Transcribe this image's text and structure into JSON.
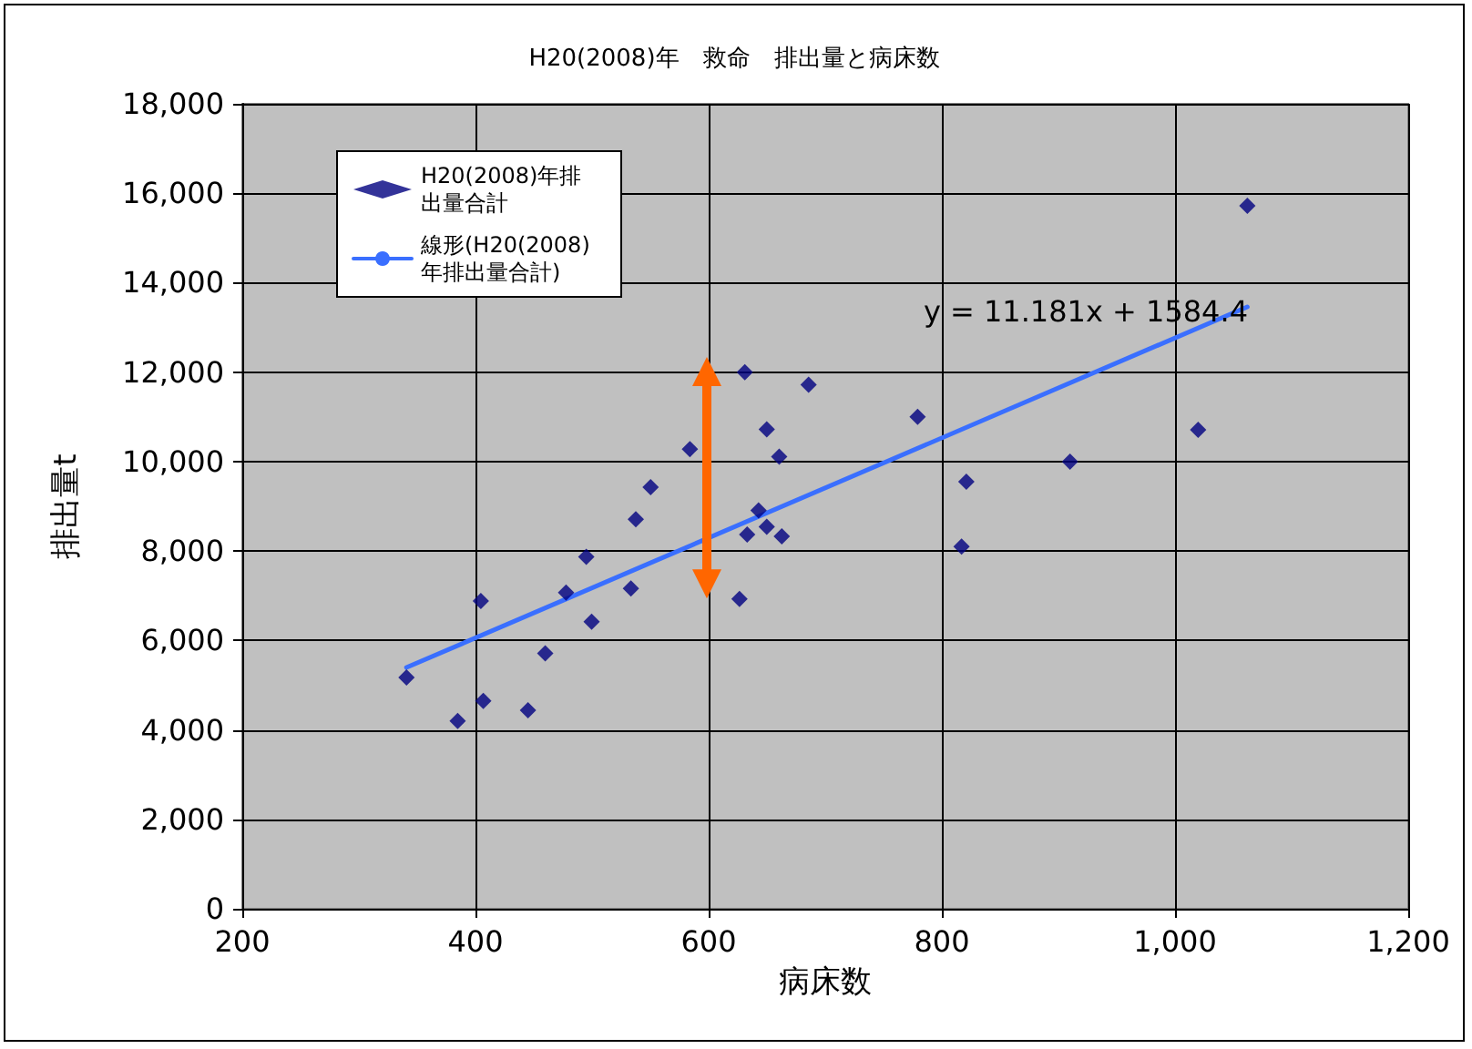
{
  "chart_data": {
    "type": "scatter",
    "title": "H20(2008)年　救命　排出量と病床数",
    "xlabel": "病床数",
    "ylabel": "排出量t",
    "annotations": [
      "y = 11.181x + 1584.4"
    ],
    "x": [
      340.8,
      384.7,
      404.6,
      406.7,
      445,
      459.8,
      477.7,
      495,
      499.6,
      533.3,
      537.5,
      550.2,
      583.9,
      631,
      626.4,
      633,
      642.8,
      649.8,
      649.8,
      660.5,
      662.7,
      685.7,
      779.2,
      821,
      816.9,
      909.9,
      1019.8,
      1062
    ],
    "series": [
      {
        "name": "H20(2008)年排出量合計",
        "color": "#000080",
        "values": [
          5170,
          4200,
          6880,
          4650,
          4440,
          5710,
          7070,
          7870,
          6420,
          7160,
          8710,
          9430,
          10280,
          12000,
          6930,
          8370,
          8910,
          8540,
          10720,
          10110,
          8330,
          11720,
          11000,
          9550,
          8100,
          10000,
          10710,
          15720
        ]
      },
      {
        "name": "線形(H20(2008)年排出量合計)",
        "type": "line",
        "color": "#3a6fff",
        "x": [
          340.8,
          1062
        ],
        "values": [
          5395,
          13458
        ],
        "marker": "none"
      }
    ],
    "xlim": [
      200,
      1200
    ],
    "xticks": [
      200,
      400,
      600,
      800,
      {
        "value": 1000,
        "label": "1,000"
      },
      {
        "value": 1200,
        "label": "1,200"
      }
    ],
    "ylim": [
      0,
      18000
    ],
    "yticks": [
      0,
      {
        "value": 2000,
        "label": "2,000"
      },
      {
        "value": 4000,
        "label": "4,000"
      },
      {
        "value": 6000,
        "label": "6,000"
      },
      {
        "value": 8000,
        "label": "8,000"
      },
      {
        "value": 10000,
        "label": "10,000"
      },
      {
        "value": 12000,
        "label": "12,000"
      },
      {
        "value": 14000,
        "label": "14,000"
      },
      {
        "value": 16000,
        "label": "16,000"
      },
      {
        "value": 18000,
        "label": "18,000"
      }
    ],
    "grid": true,
    "legend": "top left",
    "marker": "diamond"
  }
}
